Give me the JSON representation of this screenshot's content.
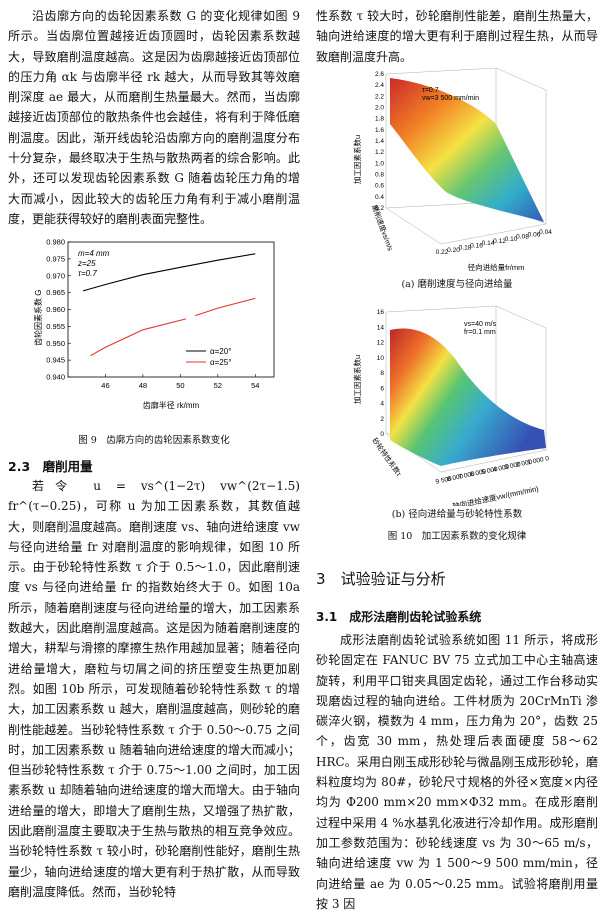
{
  "left_top_paragraph": "沿齿廓方向的齿轮因素系数 G 的变化规律如图 9 所示。当齿廓位置越接近齿顶圆时，齿轮因素系数越大，导致磨削温度越高。这是因为齿廓越接近齿顶部位的压力角 αk 与齿廓半径 rk 越大，从而导致其等效磨削深度 ae 最大，从而磨削生热量最大。然而，当齿廓越接近齿顶部位的散热条件也会越佳，将有利于降低磨削温度。因此，渐开线齿轮沿齿廓方向的磨削温度分布十分复杂，最终取决于生热与散热两者的综合影响。此外，还可以发现齿轮因素系数 G 随着齿轮压力角的增大而减小，因此较大的齿轮压力角有利于减小磨削温度，更能获得较好的磨削表面完整性。",
  "fig9": {
    "caption": "图 9　齿廓方向的齿轮因素系数变化",
    "params": [
      "m=4 mm",
      "z=25",
      "τ=0.7"
    ],
    "chart_data": {
      "type": "line",
      "xlabel": "齿廓半径 rk/mm",
      "ylabel": "齿轮因素系数 G",
      "xlim": [
        44,
        55
      ],
      "ylim": [
        0.94,
        0.98
      ],
      "xticks": [
        "46",
        "48",
        "50",
        "52",
        "54"
      ],
      "yticks": [
        "0.940",
        "0.945",
        "0.950",
        "0.955",
        "0.960",
        "0.965",
        "0.970",
        "0.975",
        "0.980"
      ],
      "legend_position": "lower-right",
      "series": [
        {
          "name": "α=20°",
          "color": "#000000",
          "dashed": false,
          "x": [
            44.8,
            46,
            48,
            50,
            52,
            54
          ],
          "y": [
            0.9655,
            0.9674,
            0.9703,
            0.9725,
            0.9746,
            0.9765
          ]
        },
        {
          "name": "α=25°",
          "color": "#e8332b",
          "dashed": false,
          "x": [
            45.2,
            46,
            48,
            50.3
          ],
          "y": [
            0.9463,
            0.9488,
            0.954,
            0.9572
          ]
        },
        {
          "name": "",
          "color": "#e8332b",
          "dashed": false,
          "x": [
            50.8,
            52,
            54
          ],
          "y": [
            0.9582,
            0.9604,
            0.9633
          ]
        }
      ]
    }
  },
  "section_23": {
    "number": "2.3",
    "title": "磨削用量"
  },
  "left_bottom_paragraph": "若令 u = vs^(1−2τ) vw^(2τ−1.5) fr^(τ−0.25)，可称 u 为加工因素系数，其数值越大，则磨削温度越高。磨削速度 vs、轴向进给速度 vw 与径向进给量 fr 对磨削温度的影响规律，如图 10 所示。由于砂轮特性系数 τ 介于 0.5～1.0，因此磨削速度 vs 与径向进给量 fr 的指数始终大于 0。如图 10a 所示，随着磨削速度与径向进给量的增大，加工因素系数越大，因此磨削温度越高。这是因为随着磨削速度的增大，耕犁与滑擦的摩擦生热作用越加显著；随着径向进给量增大，磨粒与切屑之间的挤压塑变生热更加剧烈。如图 10b 所示，可发现随着砂轮特性系数 τ 的增大，加工因素系数 u 越大，磨削温度越高，则砂轮的磨削性能越差。当砂轮特性系数 τ 介于 0.50～0.75 之间时，加工因素系数 u 随着轴向进给速度的增大而减小；但当砂轮特性系数 τ 介于 0.75～1.00 之间时，加工因素系数 u 却随着轴向进给速度的增大而增大。由于轴向进给量的增大，即增大了磨削生热，又增强了热扩散，因此磨削温度主要取决于生热与散热的相互竞争效应。当砂轮特性系数 τ 较小时，砂轮磨削性能好，磨削生热量少，轴向进给速度的增大更有利于热扩散，从而导致磨削温度降低。然而，当砂轮特",
  "right_top_paragraph": "性系数 τ 较大时，砂轮磨削性能差，磨削生热量大，轴向进给速度的增大更有利于磨削过程生热，从而导致磨削温度升高。",
  "fig10a": {
    "caption": "(a) 磨削速度与径向进给量",
    "params": [
      "τ=0.7",
      "vw=3 500 mm/min"
    ],
    "zlabel": "加工因素系数u",
    "ylabel": "磨削速度vs/m/s",
    "xlabel": "径向进给量fr/mm",
    "zticks": [
      "0.2",
      "0.4",
      "0.6",
      "0.8",
      "1.0",
      "1.2",
      "1.4",
      "1.6",
      "1.8",
      "2.0",
      "2.2",
      "2.4",
      "2.6"
    ],
    "xticks": [
      "0.22",
      "0.20",
      "0.18",
      "0.16",
      "0.14",
      "0.12",
      "0.10",
      "0.08",
      "0.06",
      "0.04"
    ],
    "yticks": [
      "30",
      "35",
      "40",
      "45",
      "50",
      "55",
      "60",
      "65"
    ]
  },
  "fig10b": {
    "caption": "(b) 径向进给量与砂轮特性系数",
    "params": [
      "vs=40 m/s",
      "fr=0.1 mm"
    ],
    "zlabel": "加工因素系数u",
    "ylabel": "砂轮特性系数τ",
    "xlabel": "轴向进给速度vw/(mm/min)",
    "zticks": [
      "0",
      "2",
      "4",
      "6",
      "8",
      "10",
      "12",
      "14",
      "16"
    ],
    "xticks": [
      "9 500",
      "8 000",
      "7 000",
      "6 000",
      "5 000",
      "4 000",
      "3 000",
      "2 000",
      "1 000",
      "0"
    ],
    "yticks": [
      "1.00",
      "0.95",
      "0.90",
      "0.85",
      "0.80",
      "0.75",
      "0.70",
      "0.65",
      "0.60",
      "0.55",
      "0.50"
    ]
  },
  "fig10_caption": "图 10　加工因素系数的变化规律",
  "section_3": {
    "number": "3",
    "title": "试验验证与分析"
  },
  "section_31": {
    "number": "3.1",
    "title": "成形法磨削齿轮试验系统"
  },
  "right_bottom_paragraph": "成形法磨削齿轮试验系统如图 11 所示，将成形砂轮固定在 FANUC BV 75 立式加工中心主轴高速旋转，利用平口钳夹具固定齿轮，通过工作台移动实现磨齿过程的轴向进给。工件材质为 20CrMnTi 渗碳淬火钢，模数为 4 mm，压力角为 20°，齿数 25 个，齿宽 30 mm，热处理后表面硬度 58～62 HRC。采用白刚玉成形砂轮与微晶刚玉成形砂轮，磨料粒度均为 80#，砂轮尺寸规格的外径×宽度×内径均为 Φ200 mm×20 mm×Φ32 mm。在成形磨削过程中采用 4 %水基乳化液进行冷却作用。成形磨削加工参数范围为：砂轮线速度 vs 为 30～65 m/s，轴向进给速度 vw 为 1 500～9 500 mm/min，径向进给量 ae 为 0.05～0.25 mm。试验将磨削用量按 3 因"
}
